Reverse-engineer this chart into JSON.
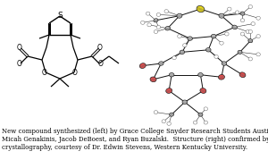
{
  "caption_line1": "New compound synthesized (left) by Grace College Snyder Research Students Austin Steppey,",
  "caption_line2": "Micah Genakinis, Jacob DeBoest, and Ryan Buzalski.  Structure (right) confirmed by X-ray",
  "caption_line3": "crystallography, courtesy of Dr. Edwin Stevens, Western Kentucky University.",
  "caption_fontsize": 5.0,
  "background_color": "#ffffff",
  "figsize": [
    3.0,
    1.88
  ],
  "dpi": 100
}
